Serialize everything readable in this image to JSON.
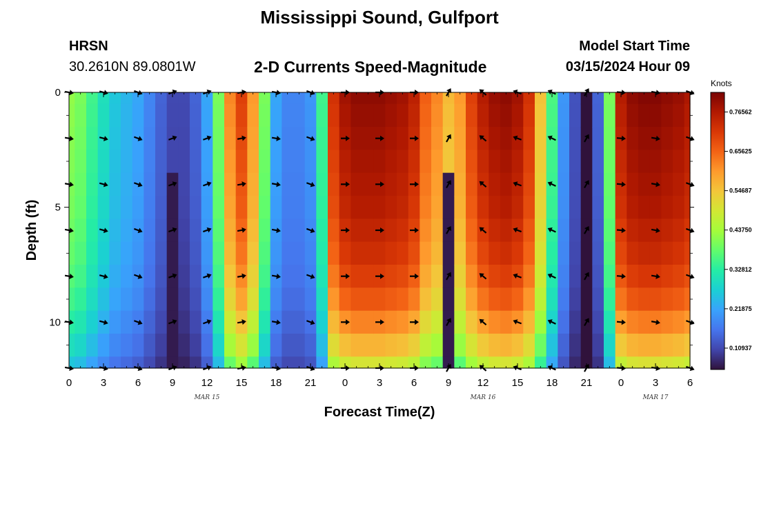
{
  "title": "Mississippi Sound, Gulfport",
  "title_bottom": "Mississippi Sound, Gulfport",
  "station": "HRSN",
  "coordinates": "30.2610N  89.0801W",
  "subtitle": "2-D Currents Speed-Magnitude",
  "model_start_label": "Model Start Time",
  "model_start_value": "03/15/2024 Hour 09",
  "chart_data": {
    "type": "heatmap",
    "title": "2-D Currents Speed-Magnitude",
    "xlabel": "Forecast Time(Z)",
    "ylabel": "Depth (ft)",
    "x_tick_labels": [
      "0",
      "3",
      "6",
      "9",
      "12",
      "15",
      "18",
      "21",
      "0",
      "3",
      "6",
      "9",
      "12",
      "15",
      "18",
      "21",
      "0",
      "3",
      "6"
    ],
    "x_tick_hours": [
      0,
      3,
      6,
      9,
      12,
      15,
      18,
      21,
      24,
      27,
      30,
      33,
      36,
      39,
      42,
      45,
      48,
      51,
      54
    ],
    "date_labels": [
      {
        "text": "MAR 15",
        "hour": 12
      },
      {
        "text": "MAR 16",
        "hour": 36
      },
      {
        "text": "MAR 17",
        "hour": 51
      }
    ],
    "xlim_hours": [
      0,
      54
    ],
    "y_tick_labels": [
      "0",
      "5",
      "10"
    ],
    "y_tick_values": [
      0,
      5,
      10
    ],
    "ylim_ft": [
      0,
      12
    ],
    "y_inverted": true,
    "colorbar": {
      "unit": "Knots",
      "tick_labels": [
        "0.76562",
        "0.65625",
        "0.54687",
        "0.43750",
        "0.32812",
        "0.21875",
        "0.10937"
      ],
      "tick_values": [
        0.76562,
        0.65625,
        0.54687,
        0.4375,
        0.32812,
        0.21875,
        0.10937
      ],
      "vmin": 0.05,
      "vmax": 0.82,
      "colormap": [
        "#30123b",
        "#4145ab",
        "#4675ed",
        "#39a2fc",
        "#1bcfd4",
        "#24eca6",
        "#61fc6c",
        "#a4fc3b",
        "#d1e834",
        "#f3c63a",
        "#fe9b2d",
        "#f36315",
        "#d93806",
        "#b11901",
        "#7a0403"
      ]
    },
    "speed_profile": {
      "hours": [
        0,
        1,
        2,
        3,
        4,
        5,
        6,
        7,
        8,
        9,
        10,
        11,
        12,
        13,
        14,
        15,
        16,
        17,
        18,
        19,
        20,
        21,
        22,
        23,
        24,
        25,
        26,
        27,
        28,
        29,
        30,
        31,
        32,
        33,
        34,
        35,
        36,
        37,
        38,
        39,
        40,
        41,
        42,
        43,
        44,
        45,
        46,
        47,
        48,
        49,
        50,
        51,
        52,
        53,
        54
      ],
      "surface_knots": [
        0.42,
        0.4,
        0.35,
        0.3,
        0.26,
        0.24,
        0.22,
        0.18,
        0.14,
        0.11,
        0.11,
        0.14,
        0.22,
        0.4,
        0.62,
        0.7,
        0.6,
        0.4,
        0.22,
        0.18,
        0.18,
        0.2,
        0.35,
        0.72,
        0.78,
        0.8,
        0.8,
        0.8,
        0.79,
        0.78,
        0.75,
        0.66,
        0.62,
        0.56,
        0.6,
        0.7,
        0.76,
        0.79,
        0.8,
        0.78,
        0.72,
        0.55,
        0.36,
        0.2,
        0.12,
        0.05,
        0.14,
        0.4,
        0.76,
        0.8,
        0.81,
        0.81,
        0.8,
        0.79,
        0.77
      ],
      "depth_factor_by_ft": [
        1.0,
        0.99,
        0.98,
        0.97,
        0.96,
        0.95,
        0.93,
        0.91,
        0.88,
        0.84,
        0.78,
        0.71,
        0.62
      ],
      "channel_hours": [
        9,
        33
      ],
      "channel_depth_ft": [
        4,
        12
      ]
    },
    "arrow_depths_ft": [
      0,
      2,
      4,
      6,
      8,
      10,
      12
    ],
    "arrow_hours": [
      0,
      3,
      6,
      9,
      12,
      15,
      18,
      21,
      24,
      27,
      30,
      33,
      36,
      39,
      42,
      45,
      48,
      51,
      54
    ],
    "arrow_direction_deg": [
      10,
      15,
      20,
      -20,
      -20,
      -10,
      10,
      20,
      0,
      0,
      0,
      -60,
      -140,
      -160,
      -155,
      -60,
      5,
      10,
      20
    ]
  }
}
